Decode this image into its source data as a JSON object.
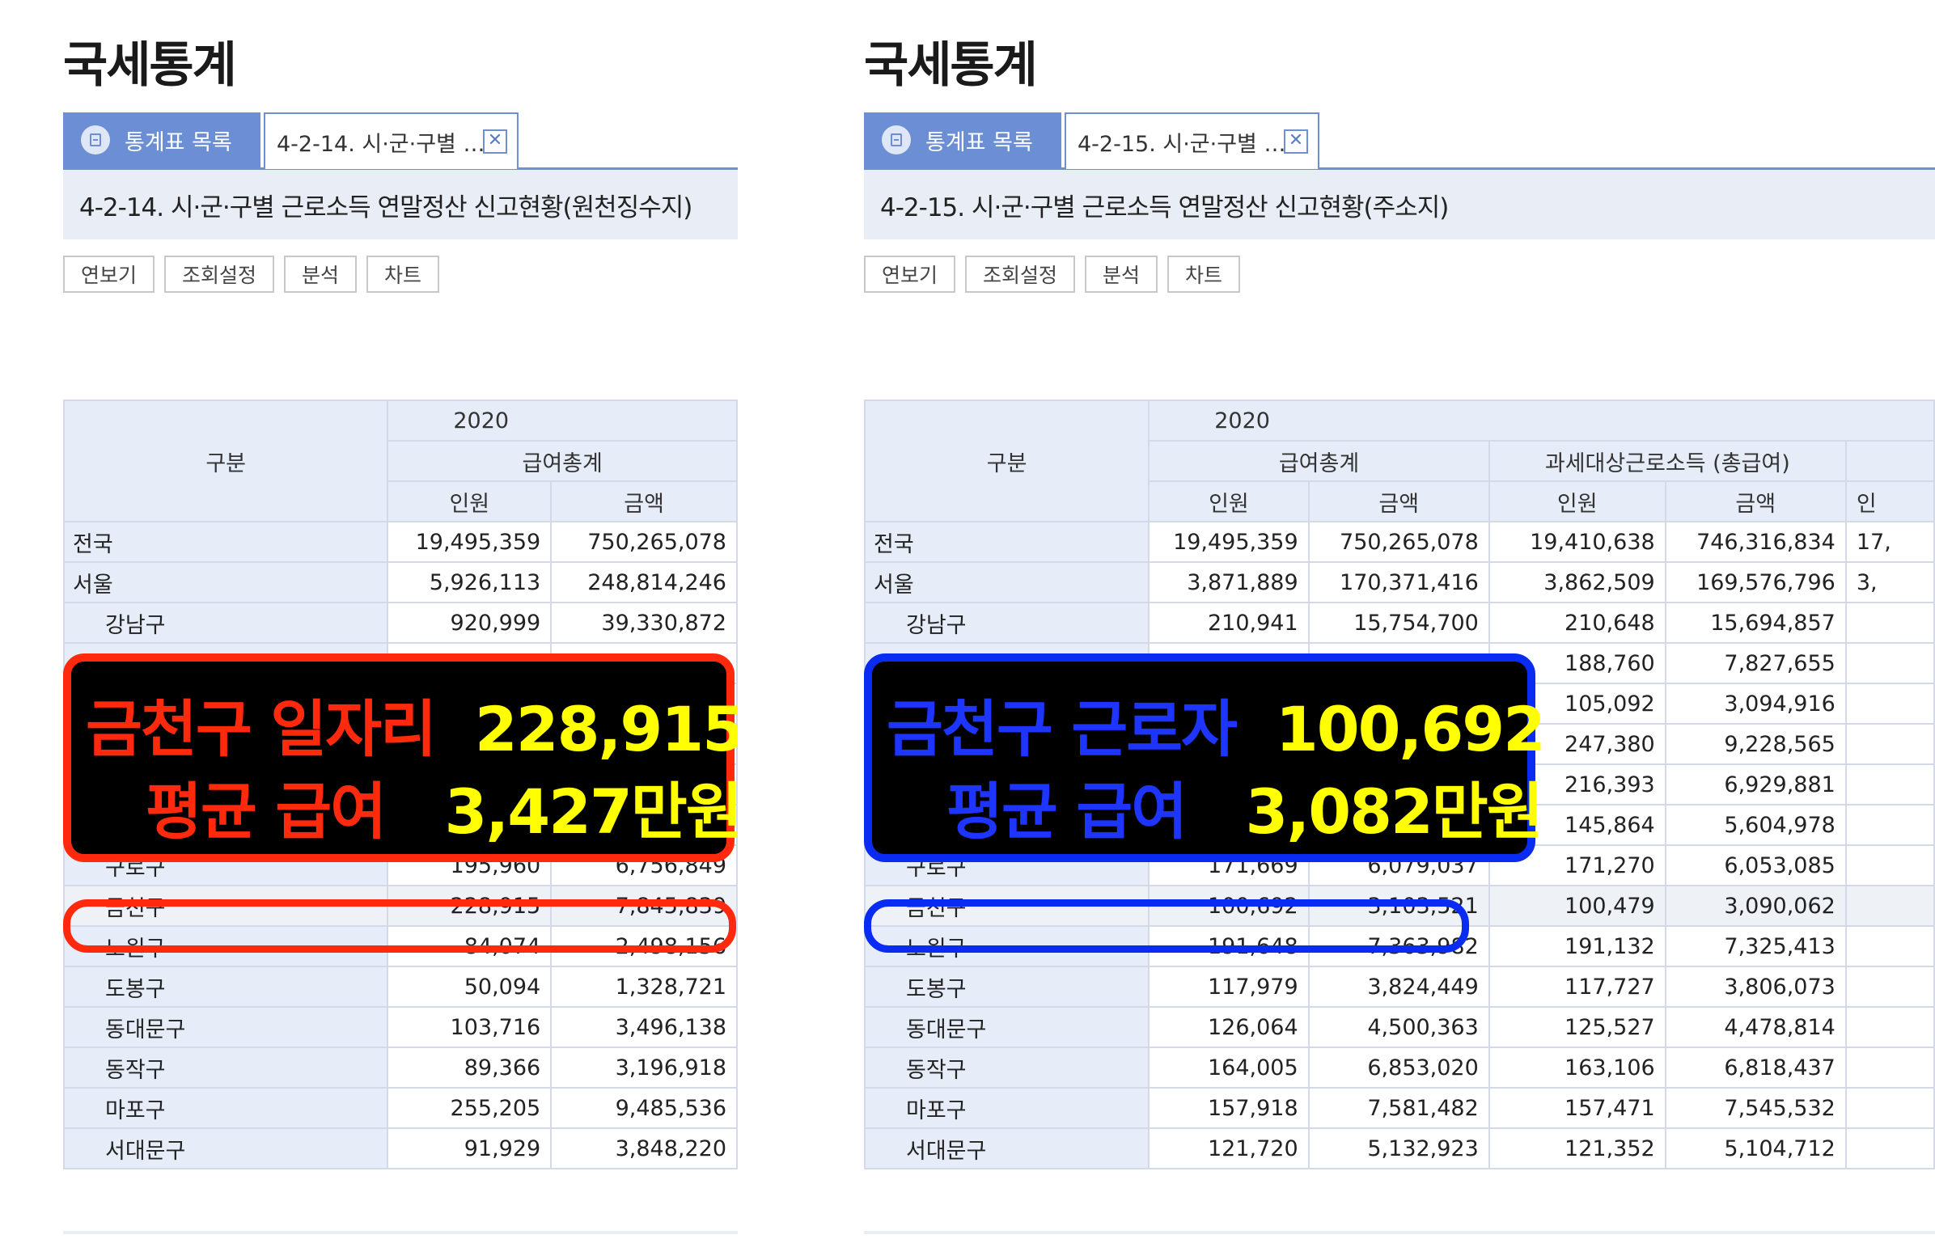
{
  "left": {
    "page_title": "국세통계",
    "tab_list_label": "통계표 목록",
    "tab_doc_label": "4-2-14. 시·군·구별 …",
    "heading": "4-2-14. 시·군·구별 근로소득 연말정산 신고현황(원천징수지)",
    "buttons": [
      "연보기",
      "조회설정",
      "분석",
      "차트"
    ],
    "table": {
      "col_label": "구분",
      "year": "2020",
      "groups": [
        "급여총계"
      ],
      "subcols": [
        "인원",
        "금액"
      ],
      "rows": [
        {
          "label": "전국",
          "values": [
            "19,495,359",
            "750,265,078"
          ]
        },
        {
          "label": "서울",
          "values": [
            "5,926,113",
            "248,814,246"
          ]
        },
        {
          "label": "강남구",
          "values": [
            "920,999",
            "39,330,872"
          ]
        },
        {
          "label": "",
          "values": [
            "",
            ""
          ]
        },
        {
          "label": "",
          "values": [
            "",
            ""
          ]
        },
        {
          "label": "",
          "values": [
            "",
            ""
          ]
        },
        {
          "label": "",
          "values": [
            "",
            ""
          ]
        },
        {
          "label": "",
          "values": [
            "",
            ""
          ]
        },
        {
          "label": "구로구",
          "values": [
            "195,960",
            "6,756,849"
          ]
        },
        {
          "label": "금천구",
          "values": [
            "228,915",
            "7,845,839"
          ]
        },
        {
          "label": "노원구",
          "values": [
            "84,074",
            "2,498,156"
          ]
        },
        {
          "label": "도봉구",
          "values": [
            "50,094",
            "1,328,721"
          ]
        },
        {
          "label": "동대문구",
          "values": [
            "103,716",
            "3,496,138"
          ]
        },
        {
          "label": "동작구",
          "values": [
            "89,366",
            "3,196,918"
          ]
        },
        {
          "label": "마포구",
          "values": [
            "255,205",
            "9,485,536"
          ]
        },
        {
          "label": "서대문구",
          "values": [
            "91,929",
            "3,848,220"
          ]
        }
      ]
    },
    "callout": {
      "line1_key": "금천구 일자리",
      "line1_value": "228,915",
      "line2_key": "평균 급여",
      "line2_value": "3,427만원"
    }
  },
  "right": {
    "page_title": "국세통계",
    "tab_list_label": "통계표 목록",
    "tab_doc_label": "4-2-15. 시·군·구별 …",
    "heading": "4-2-15. 시·군·구별 근로소득 연말정산 신고현황(주소지)",
    "buttons": [
      "연보기",
      "조회설정",
      "분석",
      "차트"
    ],
    "table": {
      "col_label": "구분",
      "year": "2020",
      "groups": [
        "급여총계",
        "과세대상근로소득 (총급여)"
      ],
      "subcols": [
        "인원",
        "금액",
        "인원",
        "금액",
        "인"
      ],
      "rows": [
        {
          "label": "전국",
          "values": [
            "19,495,359",
            "750,265,078",
            "19,410,638",
            "746,316,834",
            "17,"
          ]
        },
        {
          "label": "서울",
          "values": [
            "3,871,889",
            "170,371,416",
            "3,862,509",
            "169,576,796",
            "3,"
          ]
        },
        {
          "label": "강남구",
          "values": [
            "210,941",
            "15,754,700",
            "210,648",
            "15,694,857",
            ""
          ]
        },
        {
          "label": "",
          "values": [
            "",
            "",
            "188,760",
            "7,827,655",
            ""
          ]
        },
        {
          "label": "",
          "values": [
            "",
            "",
            "105,092",
            "3,094,916",
            ""
          ]
        },
        {
          "label": "",
          "values": [
            "",
            "",
            "247,380",
            "9,228,565",
            ""
          ]
        },
        {
          "label": "",
          "values": [
            "",
            "",
            "216,393",
            "6,929,881",
            ""
          ]
        },
        {
          "label": "",
          "values": [
            "",
            "",
            "145,864",
            "5,604,978",
            ""
          ]
        },
        {
          "label": "구로구",
          "values": [
            "171,669",
            "6,079,037",
            "171,270",
            "6,053,085",
            ""
          ]
        },
        {
          "label": "금천구",
          "values": [
            "100,692",
            "3,103,521",
            "100,479",
            "3,090,062",
            ""
          ]
        },
        {
          "label": "노원구",
          "values": [
            "191,648",
            "7,363,982",
            "191,132",
            "7,325,413",
            ""
          ]
        },
        {
          "label": "도봉구",
          "values": [
            "117,979",
            "3,824,449",
            "117,727",
            "3,806,073",
            ""
          ]
        },
        {
          "label": "동대문구",
          "values": [
            "126,064",
            "4,500,363",
            "125,527",
            "4,478,814",
            ""
          ]
        },
        {
          "label": "동작구",
          "values": [
            "164,005",
            "6,853,020",
            "163,106",
            "6,818,437",
            ""
          ]
        },
        {
          "label": "마포구",
          "values": [
            "157,918",
            "7,581,482",
            "157,471",
            "7,545,532",
            ""
          ]
        },
        {
          "label": "서대문구",
          "values": [
            "121,720",
            "5,132,923",
            "121,352",
            "5,104,712",
            ""
          ]
        }
      ]
    },
    "callout": {
      "line1_key": "금천구 근로자",
      "line1_value": "100,692",
      "line2_key": "평균 급여",
      "line2_value": "3,082만원"
    }
  },
  "colors": {
    "tab_blue": "#6b8ed4",
    "header_bg": "#e6edf9",
    "red_highlight": "#ff2a0e",
    "blue_highlight": "#0a2cf2",
    "callout_value": "#ffff00"
  }
}
